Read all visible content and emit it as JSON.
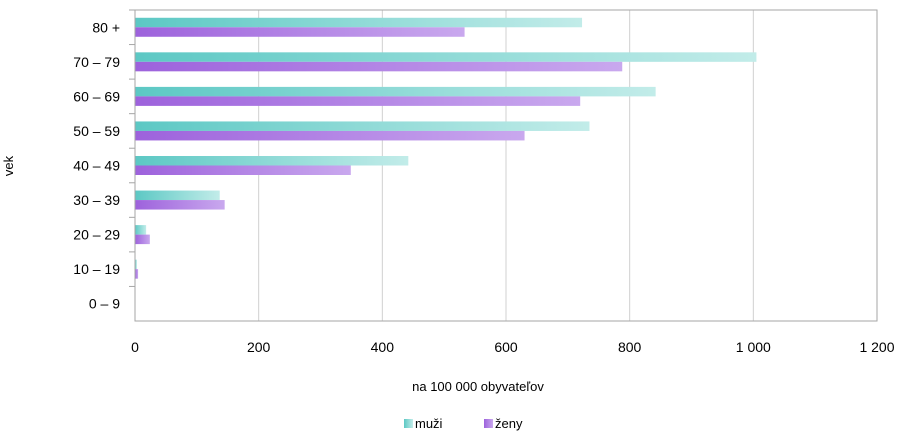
{
  "chart_data": {
    "type": "bar",
    "orientation": "horizontal",
    "categories": [
      "80 +",
      "70 – 79",
      "60 – 69",
      "50 – 59",
      "40 – 49",
      "30 – 39",
      "20 – 29",
      "10 – 19",
      "0 – 9"
    ],
    "series": [
      {
        "name": "muži",
        "color": "#5cc8c4",
        "values": [
          723,
          1005,
          842,
          735,
          442,
          137,
          18,
          3,
          0
        ]
      },
      {
        "name": "ženy",
        "color": "#9d62dc",
        "values": [
          533,
          788,
          720,
          630,
          349,
          145,
          24,
          5,
          0
        ]
      }
    ],
    "title": "",
    "xlabel": "na 100 000 obyvateľov",
    "ylabel": "vek",
    "xlim": [
      0,
      1200
    ],
    "xticks": [
      0,
      200,
      400,
      600,
      800,
      1000,
      1200
    ],
    "xtick_labels": [
      "0",
      "200",
      "400",
      "600",
      "800",
      "1 000",
      "1 200"
    ],
    "grid": "vertical",
    "legend_position": "bottom"
  }
}
